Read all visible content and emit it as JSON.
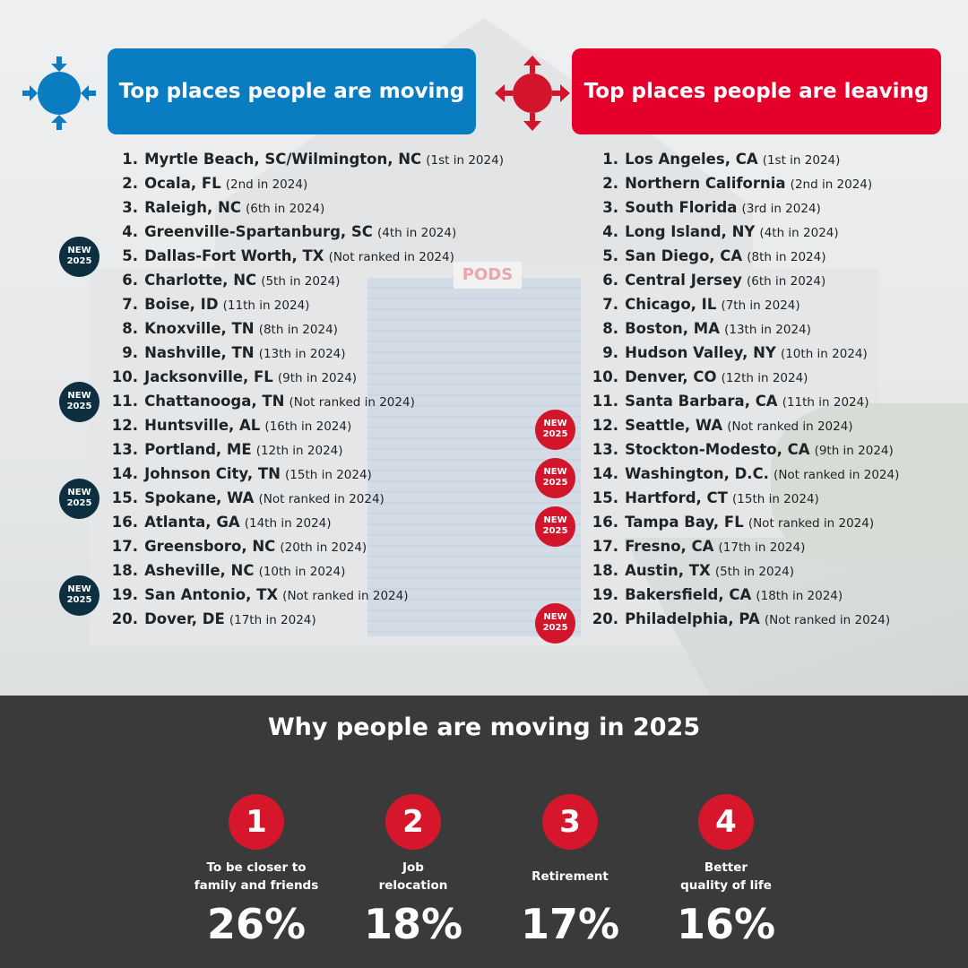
{
  "moving": {
    "title": "Top places people are moving",
    "items": [
      {
        "num": "1.",
        "city": "Myrtle Beach, SC/Wilmington, NC",
        "rank": "(1st in 2024)",
        "new": false
      },
      {
        "num": "2.",
        "city": "Ocala, FL",
        "rank": "(2nd in 2024)",
        "new": false
      },
      {
        "num": "3.",
        "city": "Raleigh, NC",
        "rank": "(6th in 2024)",
        "new": false
      },
      {
        "num": "4.",
        "city": "Greenville-Spartanburg, SC",
        "rank": "(4th in 2024)",
        "new": false
      },
      {
        "num": "5.",
        "city": "Dallas-Fort Worth, TX",
        "rank": "(Not ranked in 2024)",
        "new": true
      },
      {
        "num": "6.",
        "city": "Charlotte, NC",
        "rank": "(5th in 2024)",
        "new": false
      },
      {
        "num": "7.",
        "city": "Boise, ID",
        "rank": "(11th in 2024)",
        "new": false
      },
      {
        "num": "8.",
        "city": "Knoxville, TN",
        "rank": "(8th in 2024)",
        "new": false
      },
      {
        "num": "9.",
        "city": "Nashville, TN",
        "rank": "(13th in 2024)",
        "new": false
      },
      {
        "num": "10.",
        "city": "Jacksonville, FL",
        "rank": "(9th in 2024)",
        "new": false
      },
      {
        "num": "11.",
        "city": "Chattanooga, TN",
        "rank": "(Not ranked in 2024)",
        "new": true
      },
      {
        "num": "12.",
        "city": "Huntsville, AL",
        "rank": "(16th in 2024)",
        "new": false
      },
      {
        "num": "13.",
        "city": "Portland, ME",
        "rank": "(12th in 2024)",
        "new": false
      },
      {
        "num": "14.",
        "city": "Johnson City, TN",
        "rank": "(15th in 2024)",
        "new": false
      },
      {
        "num": "15.",
        "city": "Spokane, WA",
        "rank": "(Not ranked in 2024)",
        "new": true
      },
      {
        "num": "16.",
        "city": "Atlanta, GA",
        "rank": "(14th in 2024)",
        "new": false
      },
      {
        "num": "17.",
        "city": "Greensboro, NC",
        "rank": "(20th in 2024)",
        "new": false
      },
      {
        "num": "18.",
        "city": "Asheville, NC",
        "rank": "(10th in 2024)",
        "new": false
      },
      {
        "num": "19.",
        "city": "San Antonio, TX",
        "rank": "(Not ranked in 2024)",
        "new": true
      },
      {
        "num": "20.",
        "city": "Dover, DE",
        "rank": "(17th in 2024)",
        "new": false
      }
    ]
  },
  "leaving": {
    "title": "Top places people are leaving",
    "items": [
      {
        "num": "1.",
        "city": "Los Angeles, CA",
        "rank": "(1st in 2024)",
        "new": false
      },
      {
        "num": "2.",
        "city": "Northern California",
        "rank": "(2nd in 2024)",
        "new": false
      },
      {
        "num": "3.",
        "city": "South Florida",
        "rank": "(3rd in 2024)",
        "new": false
      },
      {
        "num": "4.",
        "city": "Long Island, NY",
        "rank": "(4th in 2024)",
        "new": false
      },
      {
        "num": "5.",
        "city": "San Diego, CA",
        "rank": "(8th in 2024)",
        "new": false
      },
      {
        "num": "6.",
        "city": "Central Jersey",
        "rank": "(6th in 2024)",
        "new": false
      },
      {
        "num": "7.",
        "city": "Chicago, IL",
        "rank": "(7th in 2024)",
        "new": false
      },
      {
        "num": "8.",
        "city": "Boston, MA",
        "rank": "(13th in 2024)",
        "new": false
      },
      {
        "num": "9.",
        "city": "Hudson Valley, NY",
        "rank": "(10th in 2024)",
        "new": false
      },
      {
        "num": "10.",
        "city": "Denver, CO",
        "rank": "(12th in 2024)",
        "new": false
      },
      {
        "num": "11.",
        "city": "Santa Barbara, CA",
        "rank": "(11th in 2024)",
        "new": false
      },
      {
        "num": "12.",
        "city": "Seattle, WA",
        "rank": "(Not ranked in 2024)",
        "new": true
      },
      {
        "num": "13.",
        "city": "Stockton-Modesto, CA",
        "rank": "(9th in 2024)",
        "new": false
      },
      {
        "num": "14.",
        "city": "Washington, D.C.",
        "rank": "(Not ranked in 2024)",
        "new": true
      },
      {
        "num": "15.",
        "city": "Hartford, CT",
        "rank": "(15th in 2024)",
        "new": false
      },
      {
        "num": "16.",
        "city": "Tampa Bay, FL",
        "rank": "(Not ranked in 2024)",
        "new": true
      },
      {
        "num": "17.",
        "city": "Fresno, CA",
        "rank": "(17th in 2024)",
        "new": false
      },
      {
        "num": "18.",
        "city": "Austin, TX",
        "rank": "(5th in 2024)",
        "new": false
      },
      {
        "num": "19.",
        "city": "Bakersfield, CA",
        "rank": "(18th in 2024)",
        "new": false
      },
      {
        "num": "20.",
        "city": "Philadelphia, PA",
        "rank": "(Not ranked in 2024)",
        "new": true
      }
    ]
  },
  "badge": {
    "line1": "NEW",
    "line2": "2025"
  },
  "background_sign": "PODS",
  "reasons": {
    "title": "Why people are moving in 2025",
    "items": [
      {
        "num": "1",
        "label_lines": [
          "To be closer to",
          "family and friends"
        ],
        "percent": "26%"
      },
      {
        "num": "2",
        "label_lines": [
          "Job",
          "relocation"
        ],
        "percent": "18%"
      },
      {
        "num": "3",
        "label_lines": [
          "Retirement"
        ],
        "percent": "17%"
      },
      {
        "num": "4",
        "label_lines": [
          "Better",
          "quality of life"
        ],
        "percent": "16%"
      }
    ]
  },
  "colors": {
    "moving_blue": "#0a7cc1",
    "leaving_red": "#e4002b",
    "badge_navy": "#0d2f3f",
    "badge_red": "#d2152b",
    "panel_gray": "#3a3a3a",
    "reason_red": "#d6172b"
  },
  "icons": {
    "moving": "arrows-inward-compass-icon",
    "leaving": "arrows-outward-compass-icon"
  }
}
